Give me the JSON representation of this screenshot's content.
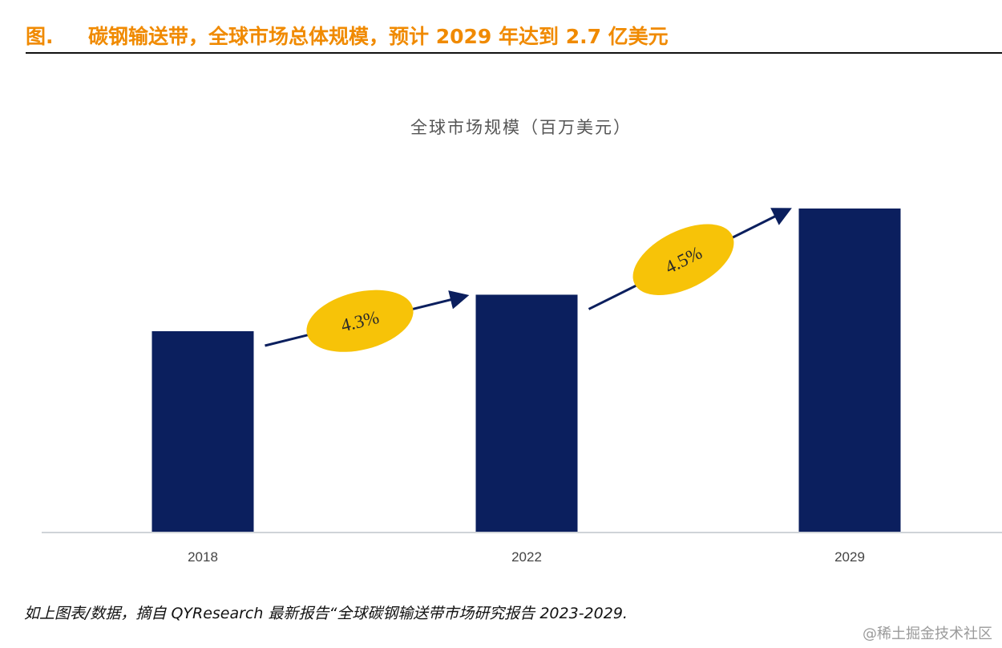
{
  "header": {
    "figure_label": "图.",
    "title": "碳钢输送带，全球市场总体规模，预计 2029 年达到 2.7 亿美元"
  },
  "colors": {
    "title": "#f08a00",
    "bar": "#0b1f5e",
    "bubble": "#f7c308",
    "arrow": "#0b1f5e"
  },
  "chart_data": {
    "type": "bar",
    "title": "全球市场规模（百万美元）",
    "xlabel": "",
    "ylabel": "",
    "categories": [
      "2018",
      "2022",
      "2029"
    ],
    "values": [
      167.5,
      198,
      270
    ],
    "ylim": [
      0,
      270
    ],
    "grid": false,
    "annotations": [
      {
        "from": "2018",
        "to": "2022",
        "label": "4.3%",
        "meaning": "CAGR"
      },
      {
        "from": "2022",
        "to": "2029",
        "label": "4.5%",
        "meaning": "CAGR"
      }
    ]
  },
  "footer": {
    "source": "如上图表/数据，摘自 QYResearch 最新报告“全球碳钢输送带市场研究报告 2023-2029.",
    "watermark": "@稀土掘金技术社区"
  }
}
